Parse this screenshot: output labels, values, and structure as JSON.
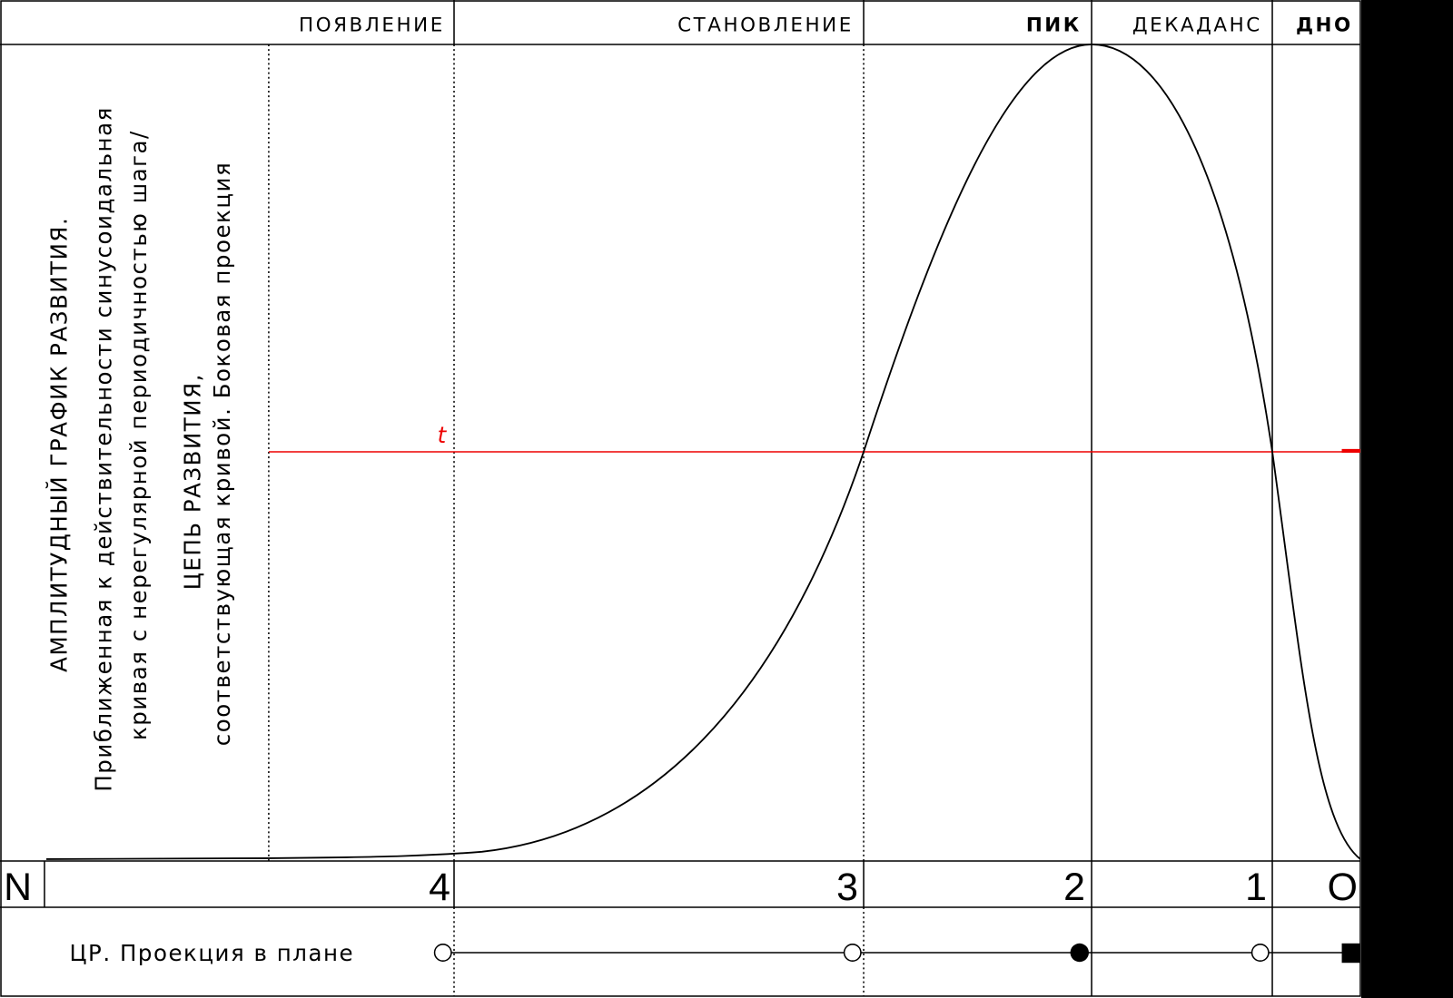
{
  "header": {
    "phases": [
      "ПОЯВЛЕНИЕ",
      "СТАНОВЛЕНИЕ",
      "ПИК",
      "ДЕКАДАНС",
      "ДНО"
    ]
  },
  "side_text": {
    "title": "АМПЛИТУДНЫЙ ГРАФИК РАЗВИТИЯ.",
    "description": [
      "Приближенная к действительности синусоидальная",
      "кривая с нерегулярной периодичностью шага/"
    ],
    "subtitle": [
      "ЦЕПЬ РАЗВИТИЯ,",
      "соответствующая кривой. Боковая проекция"
    ]
  },
  "threshold_label": "t",
  "stages": [
    "N",
    "4",
    "3",
    "2",
    "1",
    "O"
  ],
  "plan_projection": {
    "label": "ЦР. Проекция в плане"
  }
}
